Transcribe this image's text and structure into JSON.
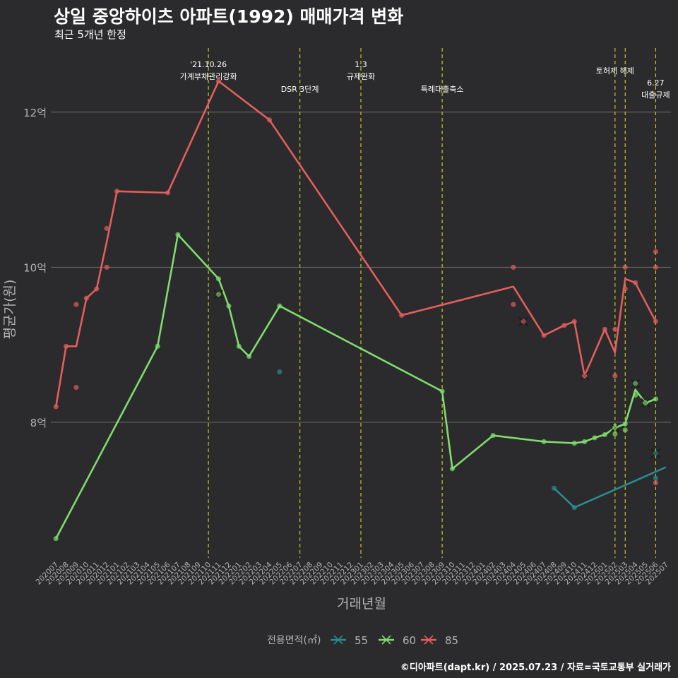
{
  "header": {
    "title": "상일 중앙하이츠 아파트(1992) 매매가격 변화",
    "subtitle": "최근 5개년 한정"
  },
  "footer": {
    "caption": "©디아파트(dapt.kr) / 2025.07.23 / 자료=국토교통부 실거래가"
  },
  "colors": {
    "background": "#2b2a2c",
    "grid": "#6e6e6e",
    "event_line": "#c8c81e",
    "axis_text": "#b3b3b3",
    "s55": "#2a8b8e",
    "s60": "#7fdc6e",
    "s85": "#e35e5e"
  },
  "chart_data": {
    "type": "line",
    "xlabel": "거래년월",
    "ylabel": "평균가(원)",
    "x_ticks": [
      "202007",
      "202008",
      "202009",
      "202010",
      "202011",
      "202012",
      "202101",
      "202102",
      "202103",
      "202104",
      "202105",
      "202106",
      "202107",
      "202108",
      "202109",
      "202110",
      "202111",
      "202112",
      "202201",
      "202202",
      "202203",
      "202204",
      "202205",
      "202206",
      "202207",
      "202208",
      "202209",
      "202210",
      "202211",
      "202212",
      "202301",
      "202302",
      "202303",
      "202304",
      "202305",
      "202306",
      "202307",
      "202308",
      "202309",
      "202310",
      "202311",
      "202312",
      "202401",
      "202402",
      "202403",
      "202404",
      "202405",
      "202406",
      "202407",
      "202408",
      "202409",
      "202410",
      "202411",
      "202412",
      "202501",
      "202502",
      "202503",
      "202504",
      "202505",
      "202506",
      "202507"
    ],
    "y_ticks": [
      {
        "value": 8,
        "label": "8억"
      },
      {
        "value": 10,
        "label": "10억"
      },
      {
        "value": 12,
        "label": "12억"
      }
    ],
    "ylim": [
      6.25,
      12.9
    ],
    "legend": {
      "title": "전용면적(㎡)",
      "position": "bottom"
    },
    "events": [
      {
        "x": "202110",
        "lines": [
          "'21.10.26",
          "가계부채관리강화"
        ],
        "row": 0
      },
      {
        "x": "202207",
        "lines": [
          "DSR 3단계"
        ],
        "row": 2
      },
      {
        "x": "202301",
        "lines": [
          "1.3",
          "규제완화"
        ],
        "row": 0
      },
      {
        "x": "202309",
        "lines": [
          "특례대출축소"
        ],
        "row": 2
      },
      {
        "x": "202502",
        "lines": [
          "토허제 해제"
        ],
        "row": 1
      },
      {
        "x": "202503",
        "lines": [],
        "row": 1
      },
      {
        "x": "202506",
        "lines": [
          "6.27",
          "대출규제"
        ],
        "row": 3
      }
    ],
    "series": [
      {
        "name": "55",
        "color": "#2a8b8e",
        "line": [
          [
            "202408",
            7.15
          ],
          [
            "202410",
            6.9
          ],
          [
            "202507",
            7.42
          ]
        ],
        "points": [
          [
            "202205",
            8.65
          ],
          [
            "202408",
            7.15
          ],
          [
            "202410",
            6.9
          ],
          [
            "202506",
            7.28
          ]
        ],
        "crosses": [
          [
            "202506",
            7.6
          ]
        ]
      },
      {
        "name": "60",
        "color": "#7fdc6e",
        "line": [
          [
            "202007",
            6.5
          ],
          [
            "202105",
            8.98
          ],
          [
            "202107",
            10.42
          ],
          [
            "202111",
            9.85
          ],
          [
            "202112",
            9.5
          ],
          [
            "202201",
            8.98
          ],
          [
            "202202",
            8.85
          ],
          [
            "202205",
            9.5
          ],
          [
            "202309",
            8.4
          ],
          [
            "202310",
            7.4
          ],
          [
            "202402",
            7.83
          ],
          [
            "202407",
            7.75
          ],
          [
            "202410",
            7.73
          ],
          [
            "202411",
            7.75
          ],
          [
            "202412",
            7.8
          ],
          [
            "202501",
            7.84
          ],
          [
            "202502",
            7.93
          ],
          [
            "202503",
            7.98
          ],
          [
            "202504",
            8.42
          ],
          [
            "202505",
            8.25
          ],
          [
            "202506",
            8.3
          ]
        ],
        "points": [
          [
            "202007",
            6.5
          ],
          [
            "202105",
            8.98
          ],
          [
            "202107",
            10.42
          ],
          [
            "202111",
            9.85
          ],
          [
            "202112",
            9.5
          ],
          [
            "202201",
            8.98
          ],
          [
            "202202",
            8.85
          ],
          [
            "202205",
            9.5
          ],
          [
            "202309",
            8.4
          ],
          [
            "202310",
            7.4
          ],
          [
            "202402",
            7.83
          ],
          [
            "202407",
            7.75
          ],
          [
            "202410",
            7.73
          ],
          [
            "202411",
            7.75
          ],
          [
            "202412",
            7.8
          ],
          [
            "202501",
            7.84
          ],
          [
            "202502",
            7.85
          ],
          [
            "202502",
            7.95
          ],
          [
            "202503",
            7.9
          ],
          [
            "202503",
            7.98
          ],
          [
            "202504",
            8.35
          ],
          [
            "202505",
            8.25
          ],
          [
            "202506",
            8.3
          ]
        ],
        "crosses": [
          [
            "202111",
            9.65
          ],
          [
            "202502",
            7.93
          ],
          [
            "202504",
            8.5
          ],
          [
            "202505",
            8.25
          ]
        ]
      },
      {
        "name": "85",
        "color": "#e35e5e",
        "line": [
          [
            "202007",
            8.2
          ],
          [
            "202008",
            8.98
          ],
          [
            "202009",
            8.98
          ],
          [
            "202010",
            9.6
          ],
          [
            "202011",
            9.72
          ],
          [
            "202012",
            10.33
          ],
          [
            "202101",
            10.98
          ],
          [
            "202106",
            10.96
          ],
          [
            "202111",
            12.4
          ],
          [
            "202204",
            11.9
          ],
          [
            "202305",
            9.38
          ],
          [
            "202404",
            9.75
          ],
          [
            "202407",
            9.12
          ],
          [
            "202409",
            9.25
          ],
          [
            "202410",
            9.3
          ],
          [
            "202411",
            8.6
          ],
          [
            "202501",
            9.2
          ],
          [
            "202502",
            8.9
          ],
          [
            "202503",
            9.85
          ],
          [
            "202504",
            9.8
          ],
          [
            "202506",
            9.3
          ]
        ],
        "points": [
          [
            "202007",
            8.2
          ],
          [
            "202008",
            8.98
          ],
          [
            "202009",
            9.52
          ],
          [
            "202009",
            8.45
          ],
          [
            "202010",
            9.6
          ],
          [
            "202011",
            9.72
          ],
          [
            "202012",
            10.5
          ],
          [
            "202012",
            10.0
          ],
          [
            "202101",
            10.98
          ],
          [
            "202106",
            10.96
          ],
          [
            "202111",
            12.4
          ],
          [
            "202204",
            11.9
          ],
          [
            "202305",
            9.38
          ],
          [
            "202404",
            10.0
          ],
          [
            "202404",
            9.52
          ],
          [
            "202407",
            9.12
          ],
          [
            "202409",
            9.25
          ],
          [
            "202410",
            9.3
          ],
          [
            "202411",
            8.6
          ],
          [
            "202501",
            9.2
          ],
          [
            "202502",
            9.2
          ],
          [
            "202502",
            8.6
          ],
          [
            "202503",
            10.0
          ],
          [
            "202503",
            9.72
          ],
          [
            "202504",
            9.8
          ],
          [
            "202506",
            10.2
          ],
          [
            "202506",
            10.0
          ],
          [
            "202506",
            9.3
          ],
          [
            "202506",
            7.22
          ]
        ],
        "crosses": [
          [
            "202405",
            9.3
          ],
          [
            "202411",
            8.6
          ]
        ]
      }
    ]
  }
}
